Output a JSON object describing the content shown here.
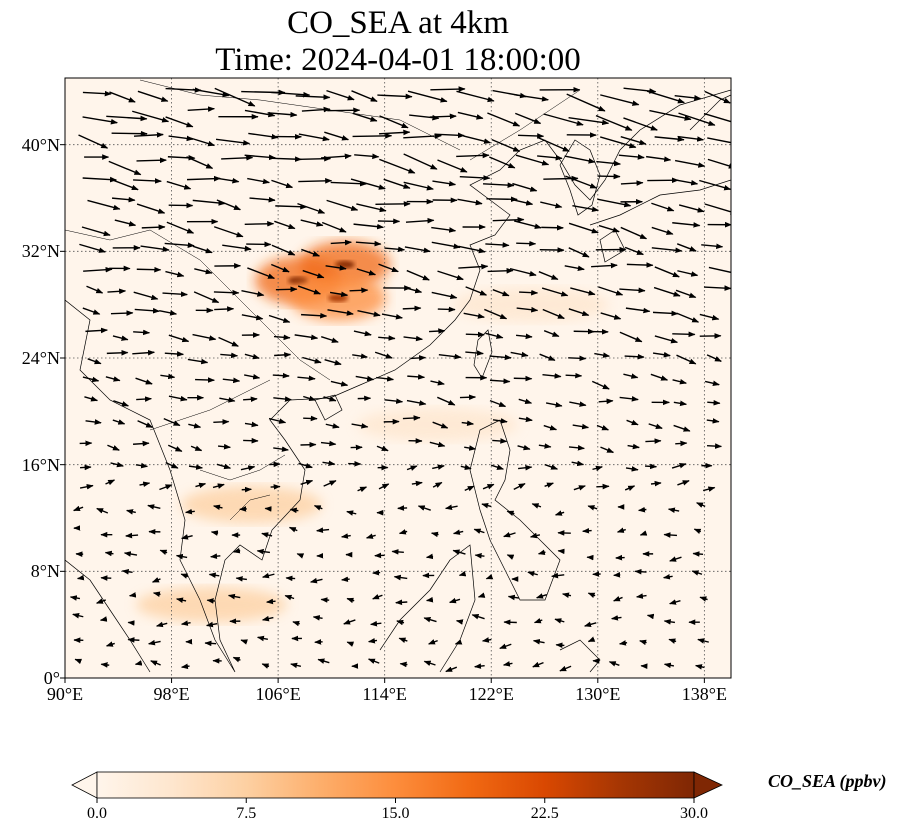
{
  "title_line1": "CO_SEA at 4km",
  "title_line2": "Time: 2024-04-01 18:00:00",
  "map": {
    "lon_range": [
      90,
      140
    ],
    "lat_range": [
      0,
      45
    ],
    "gridlines": true,
    "x_ticks": [
      "90°E",
      "98°E",
      "106°E",
      "114°E",
      "122°E",
      "130°E",
      "138°E"
    ],
    "x_tick_values": [
      90,
      98,
      106,
      114,
      122,
      130,
      138
    ],
    "y_ticks": [
      "0°",
      "8°N",
      "16°N",
      "24°N",
      "32°N",
      "40°N"
    ],
    "y_tick_values": [
      0,
      8,
      16,
      24,
      32,
      40
    ],
    "plumes": [
      {
        "name": "central-china-plume",
        "lon": 111,
        "lat": 31,
        "intensity": 0.95
      },
      {
        "name": "sichuan-hotspot",
        "lon": 107.5,
        "lat": 29.8,
        "intensity": 1.0
      },
      {
        "name": "hunan-hotspot",
        "lon": 110.5,
        "lat": 28.5,
        "intensity": 0.9
      },
      {
        "name": "indochina-plume",
        "lon": 104,
        "lat": 13,
        "intensity": 0.45
      },
      {
        "name": "east-china-sea-band",
        "lon": 125,
        "lat": 28,
        "intensity": 0.3
      },
      {
        "name": "south-china-sea-band",
        "lon": 118,
        "lat": 19,
        "intensity": 0.25
      },
      {
        "name": "malaya-spot",
        "lon": 101,
        "lat": 5.5,
        "intensity": 0.35
      }
    ]
  },
  "colorbar": {
    "label": "CO_SEA (ppbv)",
    "min": 0.0,
    "max": 30.0,
    "ticks": [
      "0.0",
      "7.5",
      "15.0",
      "22.5",
      "30.0"
    ],
    "tick_values": [
      0,
      7.5,
      15,
      22.5,
      30
    ],
    "colormap": [
      "#fff5eb",
      "#fee6ce",
      "#fdd0a2",
      "#fdae6b",
      "#fd8d3c",
      "#f16913",
      "#d94801",
      "#a63603",
      "#7f2704"
    ],
    "extend": "both"
  }
}
